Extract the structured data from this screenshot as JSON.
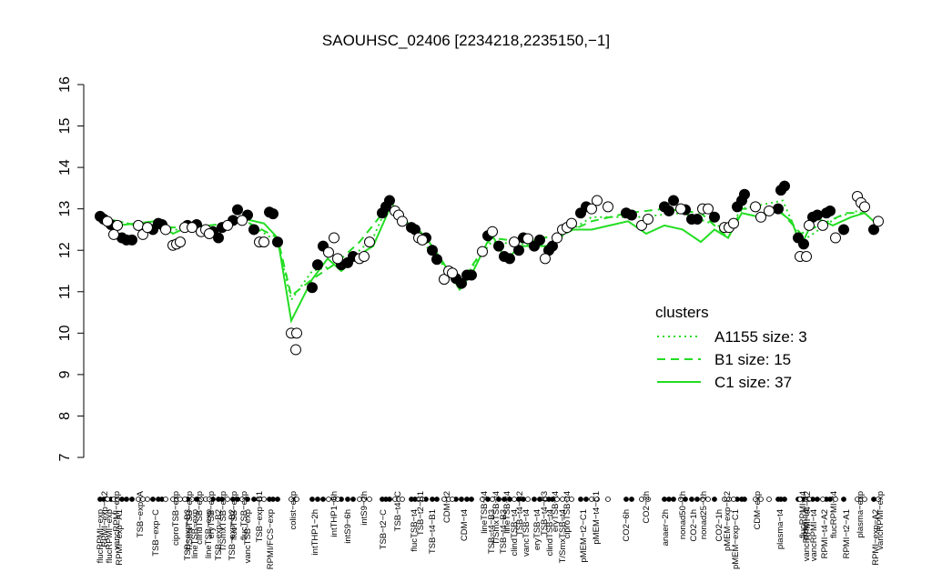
{
  "chart_data": {
    "type": "scatter",
    "title": "SAOUHSC_02406 [2234218,2235150,−1]",
    "xlim": [
      100,
      975
    ],
    "ylim": [
      7,
      16
    ],
    "yticks": [
      7,
      8,
      9,
      10,
      11,
      12,
      13,
      14,
      15,
      16
    ],
    "series": [
      {
        "marker": "filled",
        "x": [
          110,
          114,
          122,
          134,
          139,
          145,
          168,
          174,
          178,
          206,
          216,
          234,
          240,
          244,
          256,
          261,
          272,
          279,
          296,
          300,
          305,
          343,
          349,
          355,
          375,
          382,
          388,
          420,
          424,
          428,
          452,
          456,
          468,
          475,
          480,
          501,
          507,
          513,
          518,
          536,
          548,
          554,
          560,
          570,
          575,
          587,
          593,
          603,
          607,
          638,
          644,
          688,
          694,
          730,
          735,
          740,
          753,
          760,
          766,
          785,
          810,
          815,
          818,
          855,
          858,
          862,
          877,
          883,
          893,
          898,
          908,
          912,
          927,
          960
        ],
        "values": [
          12.82,
          12.75,
          12.62,
          12.3,
          12.25,
          12.25,
          12.5,
          12.65,
          12.62,
          12.6,
          12.62,
          12.45,
          12.3,
          12.55,
          12.72,
          12.98,
          12.85,
          12.5,
          12.92,
          12.88,
          12.2,
          11.1,
          11.65,
          12.1,
          11.65,
          11.7,
          11.85,
          12.9,
          13.05,
          13.2,
          12.55,
          12.5,
          12.3,
          12.0,
          11.78,
          11.32,
          11.2,
          11.4,
          11.4,
          12.35,
          12.1,
          11.85,
          11.8,
          12.0,
          12.3,
          12.1,
          12.25,
          12.0,
          12.1,
          12.9,
          13.05,
          12.9,
          12.85,
          13.05,
          12.95,
          13.2,
          12.98,
          12.75,
          12.75,
          12.8,
          13.05,
          13.2,
          13.35,
          13.0,
          13.45,
          13.55,
          12.3,
          12.15,
          12.8,
          12.85,
          12.9,
          12.95,
          12.5,
          12.5
        ]
      },
      {
        "marker": "open",
        "x": [
          118,
          125,
          129,
          152,
          157,
          162,
          182,
          190,
          194,
          198,
          203,
          211,
          221,
          226,
          230,
          250,
          266,
          285,
          290,
          320,
          325,
          326,
          361,
          367,
          371,
          395,
          400,
          406,
          434,
          438,
          442,
          460,
          464,
          488,
          493,
          497,
          530,
          541,
          565,
          580,
          599,
          612,
          618,
          623,
          628,
          650,
          656,
          668,
          705,
          712,
          748,
          772,
          778,
          796,
          801,
          806,
          830,
          836,
          845,
          879,
          886,
          889,
          904,
          918,
          942,
          946,
          950,
          965
        ],
        "values": [
          12.7,
          12.38,
          12.6,
          12.6,
          12.38,
          12.55,
          12.5,
          12.12,
          12.15,
          12.2,
          12.55,
          12.55,
          12.45,
          12.5,
          12.4,
          12.6,
          12.72,
          12.2,
          12.2,
          10.0,
          9.6,
          10.0,
          11.95,
          12.3,
          11.8,
          11.8,
          11.85,
          12.2,
          12.95,
          12.85,
          12.7,
          12.3,
          12.25,
          11.3,
          11.5,
          11.45,
          11.97,
          12.45,
          12.2,
          12.28,
          11.8,
          12.3,
          12.5,
          12.55,
          12.65,
          13.0,
          13.2,
          13.05,
          12.6,
          12.75,
          13.0,
          13.0,
          13.0,
          12.55,
          12.55,
          12.65,
          13.05,
          12.8,
          12.95,
          11.85,
          11.85,
          12.6,
          12.6,
          12.3,
          13.3,
          13.15,
          13.05,
          12.7
        ]
      }
    ],
    "legend_title": "clusters",
    "clusters": [
      {
        "name": "A1155 size: 3",
        "color": "#22dd22",
        "dash": "dotted",
        "x": [
          110,
          150,
          190,
          230,
          270,
          305,
          320,
          343,
          380,
          410,
          428,
          460,
          505,
          540,
          600,
          650,
          700,
          750,
          800,
          815,
          860,
          880,
          920,
          950
        ],
        "values": [
          12.8,
          12.6,
          12.5,
          12.5,
          12.7,
          12.2,
          10.8,
          11.5,
          11.7,
          12.3,
          13.2,
          12.3,
          11.2,
          12.2,
          12.1,
          12.8,
          12.8,
          12.9,
          12.5,
          13.0,
          13.2,
          12.2,
          12.8,
          13.0
        ]
      },
      {
        "name": "B1 size: 15",
        "color": "#22dd22",
        "dash": "dashed",
        "x": [
          110,
          150,
          190,
          230,
          270,
          305,
          320,
          343,
          370,
          395,
          428,
          460,
          490,
          505,
          540,
          575,
          620,
          650,
          690,
          730,
          770,
          800,
          815,
          855,
          880,
          900,
          930,
          950
        ],
        "values": [
          12.8,
          12.6,
          12.55,
          12.6,
          12.7,
          12.3,
          10.9,
          11.3,
          11.7,
          12.2,
          13.1,
          12.4,
          11.6,
          11.2,
          12.3,
          12.2,
          12.4,
          12.7,
          12.9,
          13.0,
          12.9,
          12.3,
          13.0,
          13.0,
          12.4,
          12.6,
          12.9,
          12.9
        ]
      },
      {
        "name": "C1 size: 37",
        "color": "#22dd22",
        "dash": "solid",
        "x": [
          110,
          130,
          150,
          170,
          190,
          210,
          230,
          250,
          270,
          290,
          305,
          320,
          343,
          360,
          375,
          395,
          410,
          428,
          445,
          460,
          475,
          490,
          505,
          520,
          540,
          555,
          575,
          600,
          625,
          650,
          670,
          690,
          710,
          730,
          750,
          770,
          785,
          800,
          815,
          835,
          855,
          870,
          880,
          895,
          915,
          935,
          950,
          965
        ],
        "values": [
          12.8,
          12.6,
          12.65,
          12.7,
          12.4,
          12.6,
          12.5,
          12.6,
          12.75,
          12.65,
          12.3,
          10.3,
          11.3,
          11.8,
          11.5,
          11.9,
          12.1,
          13.0,
          12.7,
          12.5,
          12.1,
          11.6,
          11.05,
          11.5,
          12.4,
          11.8,
          12.1,
          12.1,
          12.5,
          12.5,
          12.6,
          12.7,
          12.4,
          12.6,
          12.5,
          12.2,
          12.5,
          12.3,
          12.9,
          12.8,
          12.95,
          12.7,
          12.1,
          12.8,
          12.6,
          12.8,
          12.9,
          12.6
        ]
      }
    ],
    "top_labels": {
      "x": [
        115,
        128,
        154,
        193,
        208,
        219,
        232,
        245,
        257,
        268,
        285,
        322,
        367,
        400,
        437,
        462,
        491,
        532,
        545,
        557,
        571,
        598,
        610,
        623,
        655,
        710,
        750,
        773,
        799,
        832,
        882,
        887,
        916,
        945,
        967
      ],
      "labels": [
        "RPMI−exp−A2",
        "vancRPMI−exp",
        "TSB−exp−A",
        "ciproTSB−exp",
        "T/SmxTSB−exp",
        "clindTSB−exp",
        "eryTSB−exp",
        "T/SmxTSB−exp",
        "flucTSB−exp",
        "flucTSB−exp",
        "TSB−exp−B1",
        "colist−exp",
        "intTHP1−6h",
        "intS9−2h",
        "TSB−t4−C",
        "TSB−t2−B1",
        "CDM−t2",
        "lineTSB−t4",
        "T/SmxTSB−t4",
        "lineTSB−t4",
        "TSB−t4−B2",
        "TSB−t4−B3",
        "eryTSB−t4",
        "ciproTSB−t4",
        "pMEM−t4−C1",
        "CO2−2h",
        "nonad50−1h",
        "nonad25−1h",
        "pMEM−exp−C2",
        "CDM−exp",
        "flucRPMI−t4",
        "RPMI−t4−A2",
        "flucRPMI−t4",
        "plasma−exp",
        "vancRPMI−exp"
      ]
    },
    "bottom_labels": {
      "x": [
        110,
        120,
        131,
        171,
        206,
        214,
        229,
        240,
        255,
        272,
        297,
        346,
        382,
        421,
        455,
        475,
        510,
        540,
        553,
        565,
        578,
        590,
        604,
        618,
        641,
        688,
        731,
        762,
        790,
        808,
        857,
        886,
        894,
        906,
        930,
        962
      ],
      "labels": [
        "flucRPMI−exp",
        "flucRPMI−exp",
        "RPMI−exp−A1",
        "TSB−exp−C",
        "TSB−exp−B3",
        "lineTSB−exp",
        "lineTSB−exp",
        "TSB−exp−B2",
        "TSB−exp−B2",
        "vancTSB−exp",
        "RPMI/FCS−exp",
        "intTHP1−2h",
        "intS9−6h",
        "TSB−t2−C",
        "flucTSB−t4",
        "TSB−t4−B1",
        "CDM−t4",
        "TSB−t4−B3",
        "TSB−t4−B3",
        "clindTSB−t4",
        "vancTSB−t4",
        "eryTSB−t4",
        "clindTSB−t4",
        "T/SmxTSB−t4",
        "pMEM−t2−C1",
        "CO2−6h",
        "anaer−2h",
        "CO2−1h",
        "CO2−1h",
        "pMEM−exp−C1",
        "plasma−t4",
        "vancRPMI−t4",
        "vancRPMI−t4",
        "RPMI−t4−A2",
        "RPMI−t2−A1",
        "RPMI−exp−A2"
      ]
    }
  }
}
